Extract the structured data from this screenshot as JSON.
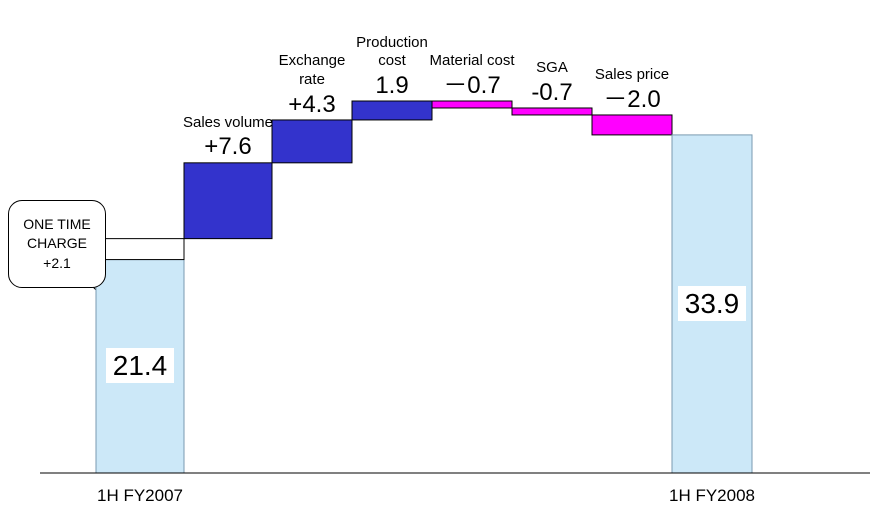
{
  "chart_data": {
    "type": "waterfall",
    "categories": [
      "1H FY2007",
      "ONE TIME CHARGE",
      "Sales volume",
      "Exchange rate",
      "Production cost",
      "Material cost",
      "SGA",
      "Sales price",
      "1H FY2008"
    ],
    "measures": [
      "total",
      "relative",
      "relative",
      "relative",
      "relative",
      "relative",
      "relative",
      "relative",
      "total"
    ],
    "values": [
      21.4,
      2.1,
      7.6,
      4.3,
      1.9,
      -0.7,
      -0.7,
      -2.0,
      33.9
    ],
    "value_labels": [
      "21.4",
      "+2.1",
      "+7.6",
      "+4.3",
      "1.9",
      "－0.7",
      "-0.7",
      "－2.0",
      "33.9"
    ],
    "colors": [
      "#cce8f8",
      "#ffffff",
      "#3333cc",
      "#3333cc",
      "#3333cc",
      "#ff00ff",
      "#ff00ff",
      "#ff00ff",
      "#cce8f8"
    ]
  }
}
